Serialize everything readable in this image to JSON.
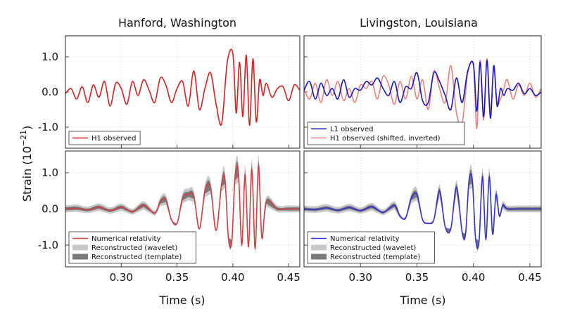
{
  "figure": {
    "columns": [
      "Hanford, Washington",
      "Livingston, Louisiana"
    ],
    "ylabel": "Strain (10",
    "ylabel_exp": "−21",
    "ylabel_close": ")",
    "xlabel": "Time (s)"
  },
  "colors": {
    "h1": "#d62020",
    "l1": "#1515c8",
    "h1_shifted": "#f08080",
    "wavelet_band": "#c8c8c8",
    "template_band": "#7a7a7a",
    "nr_h1": "#d04040",
    "nr_l1": "#3030d0"
  },
  "chart_data": [
    {
      "panel": "top-left",
      "type": "line",
      "xlim": [
        0.25,
        0.46
      ],
      "ylim": [
        -1.6,
        1.6
      ],
      "yticks": [
        1.0,
        0.0,
        -1.0
      ],
      "ytick_labels": [
        "1.0",
        "0.0",
        "-1.0"
      ],
      "xticks": [
        0.3,
        0.35,
        0.4,
        0.45
      ],
      "grid": true,
      "legend_position": "bottom-left",
      "series": [
        {
          "name": "H1 observed",
          "style": "line",
          "color": "#d62020",
          "x": [
            0.25,
            0.255,
            0.26,
            0.265,
            0.27,
            0.275,
            0.28,
            0.285,
            0.29,
            0.295,
            0.3,
            0.305,
            0.31,
            0.315,
            0.32,
            0.325,
            0.33,
            0.335,
            0.34,
            0.345,
            0.35,
            0.355,
            0.36,
            0.365,
            0.37,
            0.375,
            0.38,
            0.385,
            0.39,
            0.395,
            0.4,
            0.403,
            0.406,
            0.409,
            0.412,
            0.415,
            0.418,
            0.421,
            0.424,
            0.427,
            0.43,
            0.435,
            0.44,
            0.445,
            0.45,
            0.455,
            0.46
          ],
          "y": [
            -0.05,
            0.1,
            -0.2,
            0.15,
            -0.3,
            0.2,
            -0.15,
            0.3,
            -0.4,
            0.25,
            0.1,
            -0.35,
            0.3,
            -0.1,
            0.35,
            0.05,
            -0.3,
            0.4,
            0.2,
            -0.3,
            0.1,
            0.3,
            -0.4,
            0.6,
            -0.5,
            0.1,
            0.55,
            -0.35,
            -0.9,
            0.85,
            1.1,
            -0.6,
            0.85,
            -0.7,
            1.05,
            -0.95,
            0.95,
            -0.85,
            0.35,
            -0.1,
            0.25,
            -0.15,
            0.1,
            0.15,
            -0.25,
            0.2,
            0.05
          ]
        }
      ]
    },
    {
      "panel": "top-right",
      "type": "line",
      "xlim": [
        0.25,
        0.46
      ],
      "ylim": [
        -1.6,
        1.6
      ],
      "yticks": [
        1.0,
        0.0,
        -1.0
      ],
      "xticks": [
        0.3,
        0.35,
        0.4,
        0.45
      ],
      "grid": true,
      "legend_position": "bottom-left",
      "series": [
        {
          "name": "L1 observed",
          "style": "line",
          "color": "#1515c8",
          "x": [
            0.25,
            0.255,
            0.26,
            0.265,
            0.27,
            0.275,
            0.28,
            0.285,
            0.29,
            0.295,
            0.3,
            0.305,
            0.31,
            0.315,
            0.32,
            0.325,
            0.33,
            0.335,
            0.34,
            0.345,
            0.35,
            0.355,
            0.36,
            0.365,
            0.37,
            0.375,
            0.38,
            0.385,
            0.39,
            0.395,
            0.4,
            0.403,
            0.406,
            0.409,
            0.412,
            0.415,
            0.418,
            0.421,
            0.424,
            0.427,
            0.43,
            0.435,
            0.44,
            0.445,
            0.45,
            0.455,
            0.46
          ],
          "y": [
            0.05,
            0.3,
            -0.2,
            0.25,
            -0.1,
            0.1,
            -0.2,
            0.35,
            -0.15,
            0.1,
            0.05,
            0.3,
            0.2,
            0.4,
            0.1,
            -0.1,
            0.3,
            -0.3,
            0.15,
            0.1,
            0.55,
            -0.25,
            -0.3,
            0.55,
            0.3,
            -0.1,
            -0.5,
            0.4,
            -0.3,
            0.6,
            0.8,
            -0.55,
            0.85,
            -0.7,
            0.9,
            -0.75,
            0.75,
            -0.4,
            0.1,
            -0.1,
            0.1,
            0.05,
            0.25,
            -0.05,
            0.1,
            -0.1,
            0.0
          ]
        },
        {
          "name": "H1 observed (shifted, inverted)",
          "style": "line",
          "color": "#f08080",
          "x": [
            0.25,
            0.255,
            0.26,
            0.265,
            0.27,
            0.275,
            0.28,
            0.285,
            0.29,
            0.295,
            0.3,
            0.305,
            0.31,
            0.315,
            0.32,
            0.325,
            0.33,
            0.335,
            0.34,
            0.345,
            0.35,
            0.355,
            0.36,
            0.365,
            0.37,
            0.375,
            0.38,
            0.385,
            0.39,
            0.395,
            0.4,
            0.403,
            0.406,
            0.409,
            0.412,
            0.415,
            0.418,
            0.421,
            0.424,
            0.427,
            0.43,
            0.435,
            0.44,
            0.445,
            0.45,
            0.455,
            0.46
          ],
          "y": [
            0.1,
            -0.2,
            0.25,
            -0.3,
            0.35,
            -0.1,
            0.3,
            -0.25,
            0.1,
            -0.3,
            0.2,
            0.1,
            0.3,
            -0.2,
            0.45,
            0.2,
            -0.35,
            0.3,
            -0.2,
            0.45,
            -0.2,
            0.35,
            -0.5,
            0.6,
            0.1,
            -0.3,
            0.75,
            -0.6,
            -0.9,
            0.55,
            0.75,
            -1.05,
            0.9,
            -0.8,
            0.95,
            -0.6,
            0.65,
            -0.3,
            -0.2,
            0.1,
            0.35,
            -0.2,
            0.2,
            -0.1,
            0.25,
            -0.15,
            0.1
          ]
        }
      ]
    },
    {
      "panel": "bottom-left",
      "type": "line",
      "xlim": [
        0.25,
        0.46
      ],
      "ylim": [
        -1.6,
        1.6
      ],
      "yticks": [
        1.0,
        0.0,
        -1.0
      ],
      "ytick_labels": [
        "1.0",
        "0.0",
        "-1.0"
      ],
      "xticks": [
        0.3,
        0.35,
        0.4,
        0.45
      ],
      "xtick_labels": [
        "0.30",
        "0.35",
        "0.40",
        "0.45"
      ],
      "grid": true,
      "legend_position": "bottom-left",
      "series": [
        {
          "name": "Numerical relativity",
          "style": "line",
          "color": "#d04040",
          "x": [
            0.25,
            0.26,
            0.27,
            0.28,
            0.29,
            0.3,
            0.31,
            0.32,
            0.33,
            0.335,
            0.34,
            0.345,
            0.35,
            0.355,
            0.36,
            0.365,
            0.37,
            0.375,
            0.38,
            0.385,
            0.39,
            0.393,
            0.396,
            0.399,
            0.402,
            0.405,
            0.408,
            0.411,
            0.414,
            0.417,
            0.42,
            0.423,
            0.426,
            0.43,
            0.44,
            0.45,
            0.46
          ],
          "y": [
            0.0,
            0.02,
            -0.03,
            0.05,
            -0.05,
            0.05,
            -0.08,
            0.1,
            -0.12,
            0.2,
            0.25,
            -0.3,
            -0.4,
            0.3,
            0.4,
            0.35,
            -0.55,
            0.5,
            0.6,
            -0.6,
            0.7,
            0.8,
            -0.8,
            -0.9,
            0.9,
            1.0,
            -1.0,
            0.95,
            -1.05,
            1.1,
            -1.1,
            1.2,
            -0.8,
            0.2,
            0.0,
            0.0,
            0.0
          ]
        },
        {
          "name": "Reconstructed (wavelet)",
          "style": "band",
          "color": "#c8c8c8"
        },
        {
          "name": "Reconstructed (template)",
          "style": "band",
          "color": "#7a7a7a"
        }
      ]
    },
    {
      "panel": "bottom-right",
      "type": "line",
      "xlim": [
        0.25,
        0.46
      ],
      "ylim": [
        -1.6,
        1.6
      ],
      "yticks": [
        1.0,
        0.0,
        -1.0
      ],
      "xticks": [
        0.3,
        0.35,
        0.4,
        0.45
      ],
      "xtick_labels": [
        "0.30",
        "0.35",
        "0.40",
        "0.45"
      ],
      "grid": true,
      "legend_position": "bottom-left",
      "series": [
        {
          "name": "Numerical relativity",
          "style": "line",
          "color": "#3030d0",
          "x": [
            0.25,
            0.26,
            0.27,
            0.28,
            0.29,
            0.3,
            0.31,
            0.32,
            0.33,
            0.335,
            0.34,
            0.345,
            0.35,
            0.355,
            0.36,
            0.365,
            0.37,
            0.375,
            0.38,
            0.385,
            0.39,
            0.393,
            0.396,
            0.399,
            0.402,
            0.405,
            0.408,
            0.411,
            0.414,
            0.417,
            0.42,
            0.423,
            0.426,
            0.43,
            0.44,
            0.45,
            0.46
          ],
          "y": [
            0.0,
            -0.02,
            0.03,
            -0.04,
            0.04,
            -0.05,
            0.06,
            -0.1,
            0.1,
            -0.2,
            -0.25,
            0.3,
            0.4,
            -0.3,
            -0.4,
            -0.3,
            0.5,
            -0.5,
            -0.55,
            0.6,
            -0.65,
            -0.7,
            0.75,
            0.8,
            -0.85,
            -0.9,
            0.9,
            -0.85,
            0.9,
            -0.7,
            0.4,
            -0.2,
            0.1,
            0.0,
            0.0,
            0.0,
            0.0
          ]
        },
        {
          "name": "Reconstructed (wavelet)",
          "style": "band",
          "color": "#c8c8c8"
        },
        {
          "name": "Reconstructed (template)",
          "style": "band",
          "color": "#7a7a7a"
        }
      ]
    }
  ]
}
